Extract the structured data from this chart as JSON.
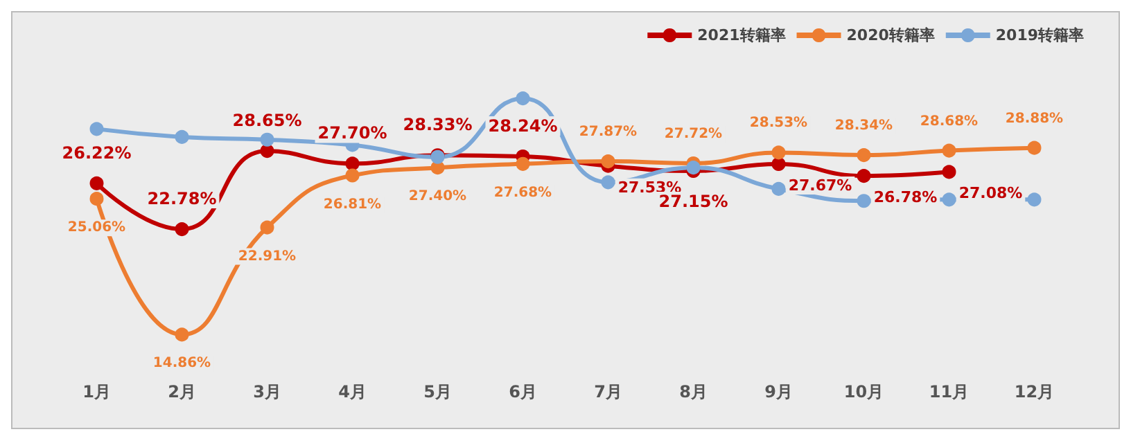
{
  "chart_data": {
    "type": "line",
    "categories": [
      "1月",
      "2月",
      "3月",
      "4月",
      "5月",
      "6月",
      "7月",
      "8月",
      "9月",
      "10月",
      "11月",
      "12月"
    ],
    "series": [
      {
        "name": "2021转籍率",
        "color": "#c00000",
        "values": [
          26.22,
          22.78,
          28.65,
          27.7,
          28.33,
          28.24,
          27.53,
          27.15,
          27.67,
          26.78,
          27.08,
          null
        ],
        "value_labels": [
          "26.22%",
          "22.78%",
          "28.65%",
          "27.70%",
          "28.33%",
          "28.24%",
          "27.53%",
          "27.15%",
          "27.67%",
          "26.78%",
          "27.08%",
          null
        ]
      },
      {
        "name": "2020转籍率",
        "color": "#ed7d31",
        "values": [
          25.06,
          14.86,
          22.91,
          26.81,
          27.4,
          27.68,
          27.87,
          27.72,
          28.53,
          28.34,
          28.68,
          28.88
        ],
        "value_labels": [
          "25.06%",
          "14.86%",
          "22.91%",
          "26.81%",
          "27.40%",
          "27.68%",
          "27.87%",
          "27.72%",
          "28.53%",
          "28.34%",
          "28.68%",
          "28.88%"
        ]
      },
      {
        "name": "2019转籍率",
        "color": "#7ba7d7",
        "values": [
          30.3,
          29.7,
          29.5,
          29.1,
          28.2,
          32.6,
          26.3,
          27.4,
          25.8,
          24.9,
          25.0,
          25.0
        ]
      }
    ],
    "tick_labels": "x",
    "grid": false,
    "legend": "top right",
    "marker": "circle",
    "line_style": "solid"
  }
}
